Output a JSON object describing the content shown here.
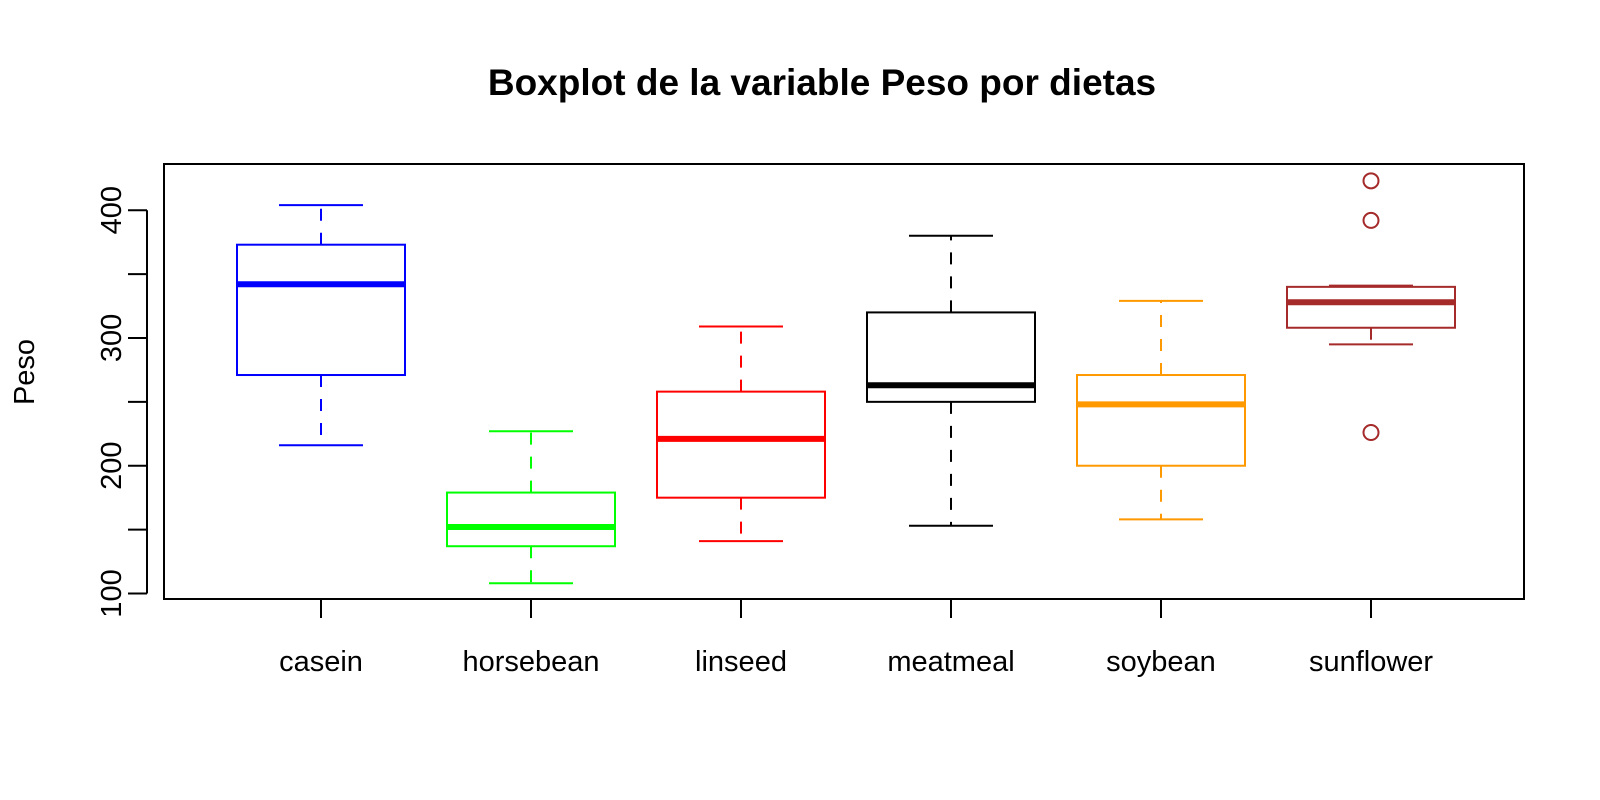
{
  "chart_data": {
    "type": "boxplot",
    "title": "Boxplot de la variable Peso por dietas",
    "xlabel": "",
    "ylabel": "Peso",
    "ylim": [
      100,
      420
    ],
    "y_ticks": [
      100,
      150,
      200,
      250,
      300,
      350,
      400
    ],
    "y_tick_labels": [
      "100",
      "",
      "200",
      "",
      "300",
      "",
      "400"
    ],
    "grid": false,
    "legend": "none",
    "categories": [
      "casein",
      "horsebean",
      "linseed",
      "meatmeal",
      "soybean",
      "sunflower"
    ],
    "boxes": [
      {
        "label": "casein",
        "color": "#0000ff",
        "whisker_low": 216,
        "q1": 271,
        "median": 342,
        "q3": 373,
        "whisker_high": 404,
        "outliers": []
      },
      {
        "label": "horsebean",
        "color": "#00ff00",
        "whisker_low": 108,
        "q1": 137,
        "median": 152,
        "q3": 179,
        "whisker_high": 227,
        "outliers": []
      },
      {
        "label": "linseed",
        "color": "#ff0000",
        "whisker_low": 141,
        "q1": 175,
        "median": 221,
        "q3": 258,
        "whisker_high": 309,
        "outliers": []
      },
      {
        "label": "meatmeal",
        "color": "#000000",
        "whisker_low": 153,
        "q1": 250,
        "median": 263,
        "q3": 320,
        "whisker_high": 380,
        "outliers": []
      },
      {
        "label": "soybean",
        "color": "#ff9900",
        "whisker_low": 158,
        "q1": 200,
        "median": 248,
        "q3": 271,
        "whisker_high": 329,
        "outliers": []
      },
      {
        "label": "sunflower",
        "color": "#a52a2a",
        "whisker_low": 295,
        "q1": 308,
        "median": 328,
        "q3": 340,
        "whisker_high": 341,
        "outliers": [
          226,
          392,
          423
        ]
      }
    ]
  }
}
